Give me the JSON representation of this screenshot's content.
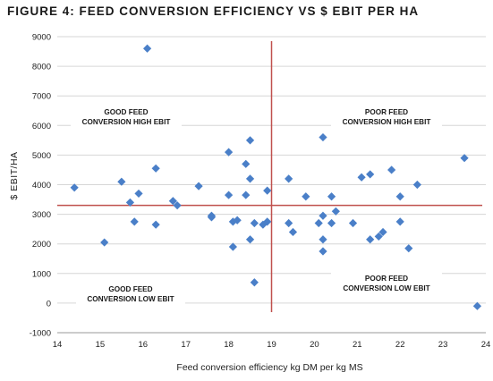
{
  "figure_title": "FIGURE 4: FEED CONVERSION EFFICIENCY VS $ EBIT PER HA",
  "colors": {
    "points": "#4a7fc8",
    "reference_lines": "#c0504d",
    "grid": "#d6d6d6"
  },
  "chart_data": {
    "type": "scatter",
    "title": "FIGURE 4: FEED CONVERSION EFFICIENCY VS $ EBIT PER HA",
    "xlabel": "Feed conversion efficiency kg DM per kg MS",
    "ylabel": "$ EBIT/HA",
    "xlim": [
      14,
      24
    ],
    "ylim": [
      -1000,
      9000
    ],
    "x_ticks": [
      "14",
      "15",
      "16",
      "17",
      "18",
      "19",
      "20",
      "21",
      "22",
      "23",
      "24"
    ],
    "y_ticks": [
      "-1000",
      "0",
      "1000",
      "2000",
      "3000",
      "4000",
      "5000",
      "6000",
      "7000",
      "8000",
      "9000"
    ],
    "grid": "horizontal",
    "reference_lines": {
      "vertical_x": 19,
      "horizontal_y": 3300
    },
    "annotations": [
      {
        "lines": [
          "GOOD FEED",
          "CONVERSION HIGH EBIT"
        ],
        "quadrant": "top-left"
      },
      {
        "lines": [
          "POOR FEED",
          "CONVERSION HIGH EBIT"
        ],
        "quadrant": "top-right"
      },
      {
        "lines": [
          "GOOD FEED",
          "CONVERSION LOW EBIT"
        ],
        "quadrant": "bottom-left"
      },
      {
        "lines": [
          "POOR FEED",
          "CONVERSION LOW EBIT"
        ],
        "quadrant": "bottom-right"
      }
    ],
    "points": [
      {
        "x": 14.4,
        "y": 3900
      },
      {
        "x": 15.1,
        "y": 2050
      },
      {
        "x": 15.5,
        "y": 4100
      },
      {
        "x": 15.7,
        "y": 3400
      },
      {
        "x": 15.8,
        "y": 2750
      },
      {
        "x": 15.9,
        "y": 3700
      },
      {
        "x": 16.1,
        "y": 8600
      },
      {
        "x": 16.3,
        "y": 4550
      },
      {
        "x": 16.3,
        "y": 2650
      },
      {
        "x": 16.7,
        "y": 3450
      },
      {
        "x": 16.8,
        "y": 3300
      },
      {
        "x": 17.3,
        "y": 3950
      },
      {
        "x": 17.6,
        "y": 2950
      },
      {
        "x": 17.6,
        "y": 2900
      },
      {
        "x": 18.0,
        "y": 5100
      },
      {
        "x": 18.0,
        "y": 3650
      },
      {
        "x": 18.1,
        "y": 1900
      },
      {
        "x": 18.1,
        "y": 2750
      },
      {
        "x": 18.2,
        "y": 2800
      },
      {
        "x": 18.4,
        "y": 4700
      },
      {
        "x": 18.4,
        "y": 3650
      },
      {
        "x": 18.5,
        "y": 5500
      },
      {
        "x": 18.5,
        "y": 4200
      },
      {
        "x": 18.5,
        "y": 2150
      },
      {
        "x": 18.6,
        "y": 2700
      },
      {
        "x": 18.6,
        "y": 700
      },
      {
        "x": 18.8,
        "y": 2650
      },
      {
        "x": 18.9,
        "y": 3800
      },
      {
        "x": 18.9,
        "y": 2750
      },
      {
        "x": 19.4,
        "y": 4200
      },
      {
        "x": 19.4,
        "y": 2700
      },
      {
        "x": 19.5,
        "y": 2400
      },
      {
        "x": 19.8,
        "y": 3600
      },
      {
        "x": 20.1,
        "y": 2700
      },
      {
        "x": 20.2,
        "y": 5600
      },
      {
        "x": 20.2,
        "y": 2950
      },
      {
        "x": 20.2,
        "y": 2150
      },
      {
        "x": 20.2,
        "y": 1750
      },
      {
        "x": 20.4,
        "y": 3600
      },
      {
        "x": 20.4,
        "y": 2700
      },
      {
        "x": 20.5,
        "y": 3100
      },
      {
        "x": 20.9,
        "y": 2700
      },
      {
        "x": 21.1,
        "y": 4250
      },
      {
        "x": 21.3,
        "y": 4350
      },
      {
        "x": 21.3,
        "y": 2150
      },
      {
        "x": 21.5,
        "y": 2250
      },
      {
        "x": 21.6,
        "y": 2400
      },
      {
        "x": 21.8,
        "y": 4500
      },
      {
        "x": 22.0,
        "y": 3600
      },
      {
        "x": 22.0,
        "y": 2750
      },
      {
        "x": 22.2,
        "y": 1850
      },
      {
        "x": 22.4,
        "y": 4000
      },
      {
        "x": 23.5,
        "y": 4900
      },
      {
        "x": 23.8,
        "y": -100
      }
    ]
  }
}
